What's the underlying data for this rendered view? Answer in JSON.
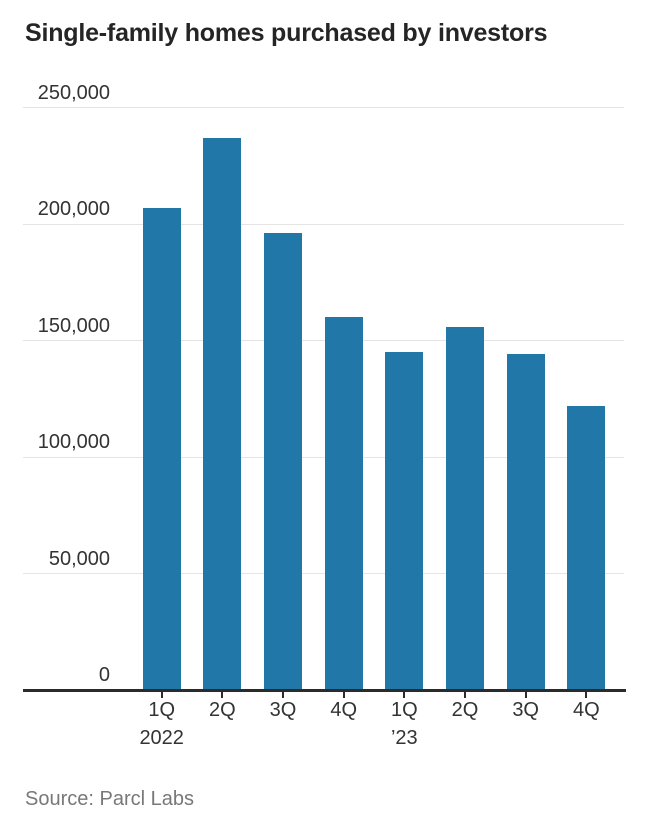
{
  "title": "Single-family homes purchased by investors",
  "source": "Source: Parcl Labs",
  "colors": {
    "bar": "#2077a8",
    "grid": "#e4e4e4",
    "axis": "#2b2b2b",
    "title_text": "#252525",
    "tick_text": "#333333",
    "source_text": "#787878"
  },
  "chart_data": {
    "type": "bar",
    "title": "Single-family homes purchased by investors",
    "xlabel": "",
    "ylabel": "",
    "categories": [
      "1Q",
      "2Q",
      "3Q",
      "4Q",
      "1Q",
      "2Q",
      "3Q",
      "4Q"
    ],
    "year_labels": [
      {
        "index": 0,
        "label": "2022"
      },
      {
        "index": 4,
        "label": "’23"
      }
    ],
    "values": [
      207000,
      237000,
      196000,
      160000,
      145000,
      156000,
      144000,
      122000
    ],
    "ylim": [
      0,
      250000
    ],
    "grid": true,
    "legend": "none",
    "yticks": [
      {
        "value": 0,
        "label": "0"
      },
      {
        "value": 50000,
        "label": "50,000"
      },
      {
        "value": 100000,
        "label": "100,000"
      },
      {
        "value": 150000,
        "label": "150,000"
      },
      {
        "value": 200000,
        "label": "200,000"
      },
      {
        "value": 250000,
        "label": "250,000"
      }
    ]
  }
}
